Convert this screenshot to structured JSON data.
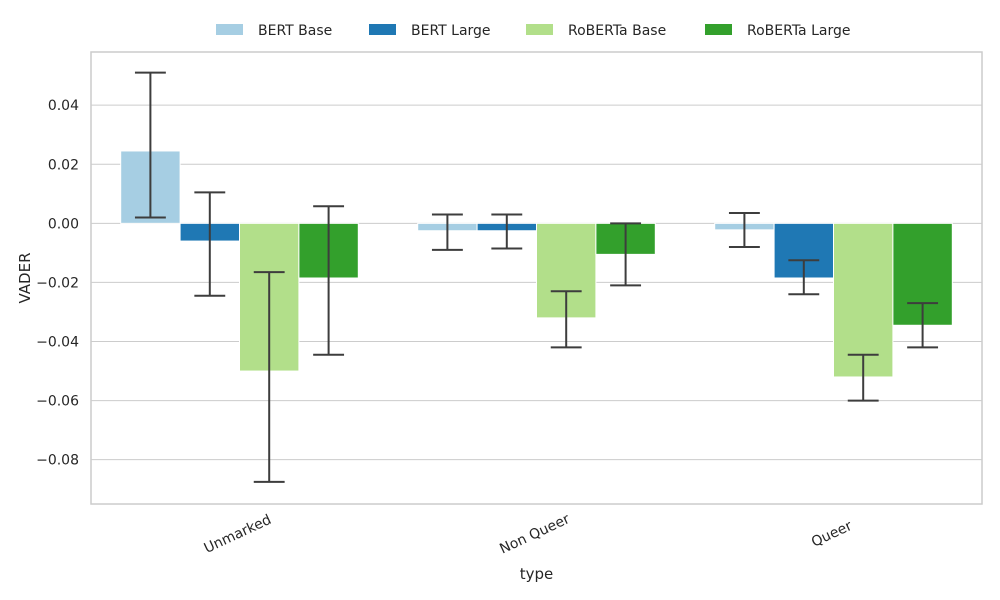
{
  "chart_data": {
    "type": "bar",
    "xlabel": "type",
    "ylabel": "VADER",
    "categories": [
      "Unmarked",
      "Non Queer",
      "Queer"
    ],
    "ylim": [
      -0.095,
      0.058
    ],
    "yticks": [
      -0.08,
      -0.06,
      -0.04,
      -0.02,
      0.0,
      0.02,
      0.04
    ],
    "ytick_labels": [
      "−0.08",
      "−0.06",
      "−0.04",
      "−0.02",
      "0.00",
      "0.02",
      "0.04"
    ],
    "grid": true,
    "legend_position": "top-center",
    "series": [
      {
        "name": "BERT Base",
        "color": "#a6cee3",
        "values": [
          0.0245,
          -0.0025,
          -0.0022
        ],
        "err_low": [
          0.002,
          -0.009,
          -0.008
        ],
        "err_high": [
          0.051,
          0.003,
          0.0035
        ]
      },
      {
        "name": "BERT Large",
        "color": "#1f78b4",
        "values": [
          -0.006,
          -0.0025,
          -0.0185
        ],
        "err_low": [
          -0.0245,
          -0.0085,
          -0.024
        ],
        "err_high": [
          0.0105,
          0.003,
          -0.0125
        ]
      },
      {
        "name": "RoBERTa Base",
        "color": "#b2df8a",
        "values": [
          -0.05,
          -0.032,
          -0.052
        ],
        "err_low": [
          -0.0875,
          -0.042,
          -0.06
        ],
        "err_high": [
          -0.0165,
          -0.023,
          -0.0445
        ]
      },
      {
        "name": "RoBERTa Large",
        "color": "#33a02c",
        "values": [
          -0.0185,
          -0.0105,
          -0.0345
        ],
        "err_low": [
          -0.0445,
          -0.021,
          -0.042
        ],
        "err_high": [
          0.0058,
          0.0,
          -0.027
        ]
      }
    ]
  }
}
